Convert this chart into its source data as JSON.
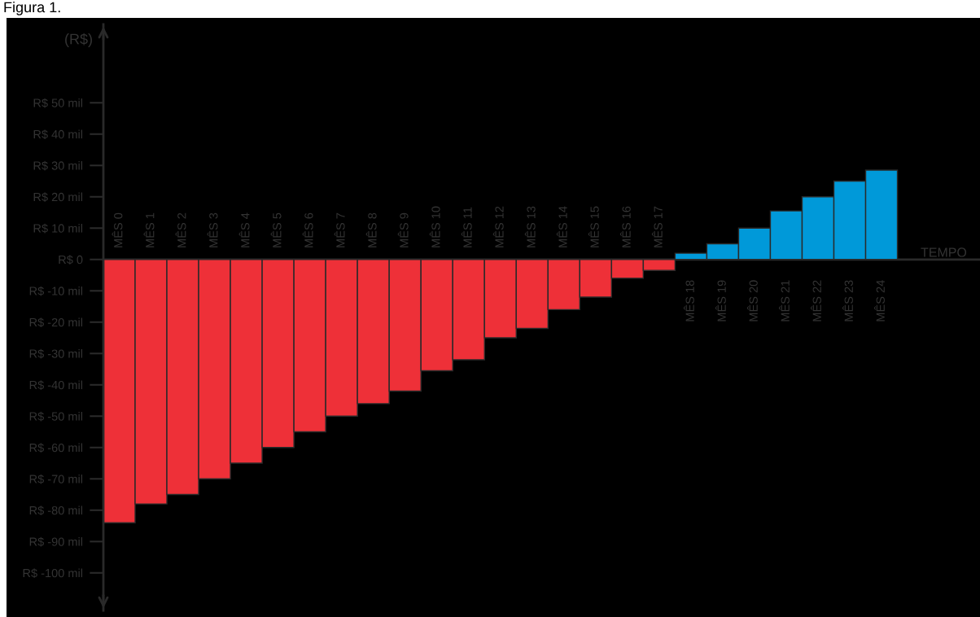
{
  "chart_data": {
    "type": "bar",
    "title": "Figura 1.",
    "xlabel": "TEMPO",
    "ylabel": "(R$)",
    "categories": [
      "MÊS 0",
      "MÊS 1",
      "MÊS 2",
      "MÊS 3",
      "MÊS 4",
      "MÊS 5",
      "MÊS 6",
      "MÊS 7",
      "MÊS 8",
      "MÊS 9",
      "MÊS 10",
      "MÊS 11",
      "MÊS 12",
      "MÊS 13",
      "MÊS 14",
      "MÊS 15",
      "MÊS 16",
      "MÊS 17",
      "MÊS 18",
      "MÊS 19",
      "MÊS 20",
      "MÊS 21",
      "MÊS 22",
      "MÊS 23",
      "MÊS 24"
    ],
    "values": [
      -84,
      -78,
      -75,
      -70,
      -65,
      -60,
      -55,
      -50,
      -46,
      -42,
      -35.5,
      -32,
      -25,
      -22,
      -16,
      -12,
      -6,
      -3.5,
      2,
      5,
      10,
      15.5,
      20,
      25,
      28.5
    ],
    "colors": [
      "#ee3038",
      "#ee3038",
      "#ee3038",
      "#ee3038",
      "#ee3038",
      "#ee3038",
      "#ee3038",
      "#ee3038",
      "#ee3038",
      "#ee3038",
      "#ee3038",
      "#ee3038",
      "#ee3038",
      "#ee3038",
      "#ee3038",
      "#ee3038",
      "#ee3038",
      "#ee3038",
      "#0099d9",
      "#0099d9",
      "#0099d9",
      "#0099d9",
      "#0099d9",
      "#0099d9",
      "#0099d9"
    ],
    "ylim": [
      -112,
      75
    ],
    "yticks": [
      {
        "value": 50,
        "label": "R$ 50 mil"
      },
      {
        "value": 40,
        "label": "R$ 40 mil"
      },
      {
        "value": 30,
        "label": "R$ 30 mil"
      },
      {
        "value": 20,
        "label": "R$ 20 mil"
      },
      {
        "value": 10,
        "label": "R$ 10 mil"
      },
      {
        "value": 0,
        "label": "R$ 0"
      },
      {
        "value": -10,
        "label": "R$ -10 mil"
      },
      {
        "value": -20,
        "label": "R$ -20 mil"
      },
      {
        "value": -30,
        "label": "R$ -30 mil"
      },
      {
        "value": -40,
        "label": "R$ -40 mil"
      },
      {
        "value": -50,
        "label": "R$ -50 mil"
      },
      {
        "value": -60,
        "label": "R$ -60 mil"
      },
      {
        "value": -70,
        "label": "R$ -70 mil"
      },
      {
        "value": -80,
        "label": "R$ -80 mil"
      },
      {
        "value": -90,
        "label": "R$ -90 mil"
      },
      {
        "value": -100,
        "label": "R$ -100 mil"
      }
    ],
    "grid": false,
    "legend": false
  }
}
